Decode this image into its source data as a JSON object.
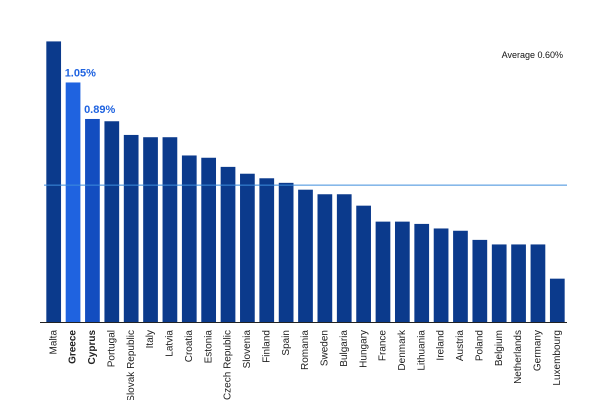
{
  "chart_data": {
    "type": "bar",
    "title": "",
    "xlabel": "",
    "ylabel": "",
    "categories": [
      "Malta",
      "Greece",
      "Cyprus",
      "Portugal",
      "Slovak Republic",
      "Italy",
      "Latvia",
      "Croatia",
      "Estonia",
      "Czech Republic",
      "Slovenia",
      "Finland",
      "Spain",
      "Romania",
      "Sweden",
      "Bulgaria",
      "Hungary",
      "France",
      "Denmark",
      "Lithuania",
      "Ireland",
      "Austria",
      "Poland",
      "Belgium",
      "Netherlands",
      "Germany",
      "Luxembourg"
    ],
    "values": [
      1.23,
      1.05,
      0.89,
      0.88,
      0.82,
      0.81,
      0.81,
      0.73,
      0.72,
      0.68,
      0.65,
      0.63,
      0.61,
      0.58,
      0.56,
      0.56,
      0.51,
      0.44,
      0.44,
      0.43,
      0.41,
      0.4,
      0.36,
      0.34,
      0.34,
      0.34,
      0.19
    ],
    "highlighted": [
      "Greece",
      "Cyprus"
    ],
    "callouts": [
      {
        "category": "Greece",
        "label": "1.05%"
      },
      {
        "category": "Cyprus",
        "label": "0.89%"
      }
    ],
    "average": {
      "value": 0.6,
      "label": "Average 0.60%"
    },
    "ylim": [
      0,
      1.28
    ],
    "grid": false,
    "colors": {
      "bar": "#0b3a8c",
      "highlight_greece": "#1f63e0",
      "highlight_cyprus": "#134dc0",
      "callout_text": "#1f63e0",
      "average_line": "#3d8ddc",
      "axis": "#222222"
    }
  }
}
